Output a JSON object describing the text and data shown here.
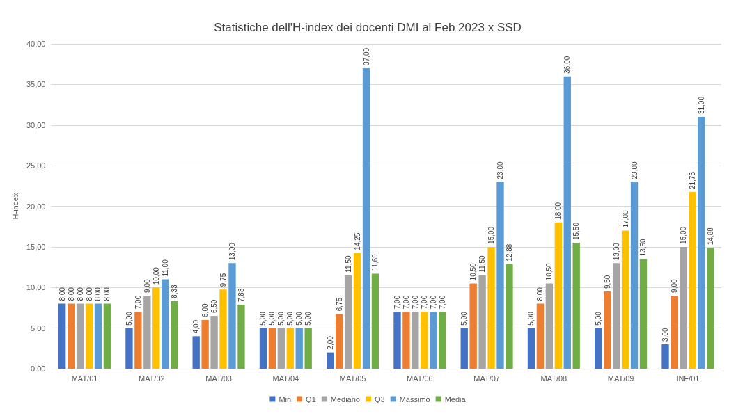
{
  "chart_data": {
    "type": "bar",
    "title": "Statistiche dell'H-index dei docenti DMI al Feb 2023 x SSD",
    "ylabel": "H-index",
    "categories": [
      "MAT/01",
      "MAT/02",
      "MAT/03",
      "MAT/04",
      "MAT/05",
      "MAT/06",
      "MAT/07",
      "MAT/08",
      "MAT/09",
      "INF/01"
    ],
    "series": [
      {
        "name": "Min",
        "color": "#4472c4",
        "values": [
          8,
          5,
          4,
          5,
          2,
          7,
          5,
          5,
          5,
          3
        ],
        "value_labels": [
          "8,00",
          "5,00",
          "4,00",
          "5,00",
          "2,00",
          "7,00",
          "5,00",
          "5,00",
          "5,00",
          "3,00"
        ]
      },
      {
        "name": "Q1",
        "color": "#ed7d31",
        "values": [
          8,
          7,
          6,
          5,
          6.75,
          7,
          10.5,
          8,
          9.5,
          9
        ],
        "value_labels": [
          "8,00",
          "7,00",
          "6,00",
          "5,00",
          "6,75",
          "7,00",
          "10,50",
          "8,00",
          "9,50",
          "9,00"
        ]
      },
      {
        "name": "Mediano",
        "color": "#a5a5a5",
        "values": [
          8,
          9,
          6.5,
          5,
          11.5,
          7,
          11.5,
          10.5,
          13,
          15
        ],
        "value_labels": [
          "8,00",
          "9,00",
          "6,50",
          "5,00",
          "11,50",
          "7,00",
          "11,50",
          "10,50",
          "13,00",
          "15,00"
        ]
      },
      {
        "name": "Q3",
        "color": "#ffc000",
        "values": [
          8,
          10,
          9.75,
          5,
          14.25,
          7,
          15,
          18,
          17,
          21.75
        ],
        "value_labels": [
          "8,00",
          "10,00",
          "9,75",
          "5,00",
          "14,25",
          "7,00",
          "15,00",
          "18,00",
          "17,00",
          "21,75"
        ]
      },
      {
        "name": "Massimo",
        "color": "#5b9bd5",
        "values": [
          8,
          11,
          13,
          5,
          37,
          7,
          23,
          36,
          23,
          31
        ],
        "value_labels": [
          "8,00",
          "11,00",
          "13,00",
          "5,00",
          "37,00",
          "7,00",
          "23,00",
          "36,00",
          "23,00",
          "31,00"
        ]
      },
      {
        "name": "Media",
        "color": "#70ad47",
        "values": [
          8,
          8.33,
          7.88,
          5,
          11.69,
          7,
          12.88,
          15.5,
          13.5,
          14.88
        ],
        "value_labels": [
          "8,00",
          "8,33",
          "7,88",
          "5,00",
          "11,69",
          "7,00",
          "12,88",
          "15,50",
          "13,50",
          "14,88"
        ]
      }
    ],
    "ylim": [
      0,
      40
    ],
    "yticks": [
      {
        "value": 0,
        "label": "0,00"
      },
      {
        "value": 5,
        "label": "5,00"
      },
      {
        "value": 10,
        "label": "10,00"
      },
      {
        "value": 15,
        "label": "15,00"
      },
      {
        "value": 20,
        "label": "20,00"
      },
      {
        "value": 25,
        "label": "25,00"
      },
      {
        "value": 30,
        "label": "30,00"
      },
      {
        "value": 35,
        "label": "35,00"
      },
      {
        "value": 40,
        "label": "40,00"
      }
    ],
    "grid": "y",
    "legend": "bottom"
  }
}
